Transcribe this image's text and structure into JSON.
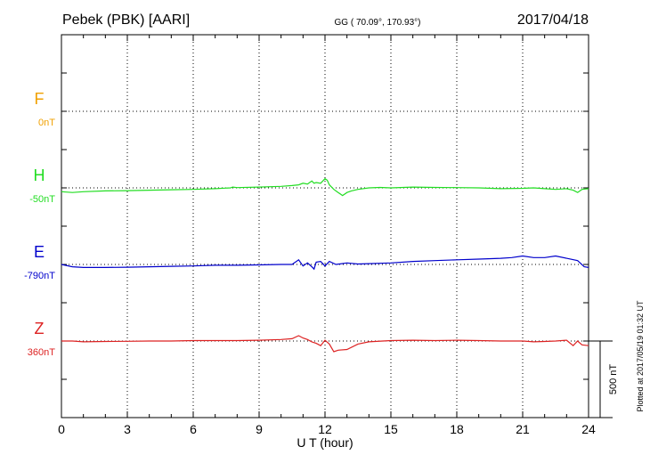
{
  "header": {
    "station": "Pebek (PBK)  [AARI]",
    "coords": "GG ( 70.09°, 170.93°)",
    "date": "2017/04/18"
  },
  "axis": {
    "xlabel": "U T (hour)",
    "ticks": [
      "0",
      "3",
      "6",
      "9",
      "12",
      "15",
      "18",
      "21",
      "24"
    ]
  },
  "scale_bar": {
    "label": "500 nT"
  },
  "plotted_text": "Plotted at 2017/05/19 01:32 UT",
  "chart_data": {
    "type": "line",
    "xlim": [
      0,
      24
    ],
    "grid": true,
    "series": [
      {
        "name": "F",
        "baseline": "0nT",
        "color": "#f0a000",
        "x": [],
        "y": []
      },
      {
        "name": "H",
        "baseline": "-50nT",
        "color": "#22dd22",
        "x": [
          0,
          0.5,
          1,
          2,
          3,
          4,
          5,
          6,
          7,
          7.7,
          7.8,
          8,
          9,
          10,
          10.5,
          10.8,
          11,
          11.2,
          11.4,
          11.5,
          11.6,
          11.8,
          12,
          12.1,
          12.2,
          12.4,
          12.6,
          12.8,
          13,
          13.2,
          13.5,
          14,
          14.5,
          15,
          16,
          17,
          18,
          19,
          20,
          21,
          21.5,
          22,
          22.5,
          23,
          23.3,
          23.5,
          23.7,
          24
        ],
        "y": [
          -25,
          -30,
          -25,
          -20,
          -18,
          -15,
          -12,
          -10,
          -5,
          0,
          5,
          2,
          5,
          10,
          15,
          20,
          30,
          25,
          45,
          30,
          35,
          30,
          60,
          50,
          20,
          -10,
          -30,
          -50,
          -30,
          -20,
          -10,
          0,
          3,
          0,
          5,
          3,
          2,
          0,
          -5,
          -3,
          0,
          -5,
          -10,
          -5,
          -15,
          -30,
          -10,
          -5
        ]
      },
      {
        "name": "E",
        "baseline": "-790nT",
        "color": "#0000cc",
        "x": [
          0,
          0.5,
          1,
          2,
          3,
          4,
          5,
          6,
          7,
          8,
          9,
          10,
          10.5,
          10.8,
          11,
          11.2,
          11.4,
          11.5,
          11.6,
          11.8,
          12,
          12.2,
          12.5,
          13,
          13.5,
          14,
          15,
          16,
          17,
          18,
          19,
          20,
          20.5,
          21,
          21.5,
          22,
          22.5,
          23,
          23.5,
          23.8,
          24
        ],
        "y": [
          0,
          -15,
          -20,
          -20,
          -18,
          -15,
          -12,
          -10,
          -5,
          -5,
          -3,
          0,
          0,
          30,
          -10,
          10,
          -15,
          -30,
          15,
          20,
          -10,
          20,
          0,
          10,
          3,
          5,
          10,
          20,
          25,
          30,
          35,
          40,
          45,
          55,
          45,
          45,
          55,
          40,
          25,
          -15,
          -20
        ]
      },
      {
        "name": "Z",
        "baseline": "360nT",
        "color": "#dd2222",
        "x": [
          0,
          0.5,
          1,
          2,
          3,
          4,
          5,
          6,
          7,
          8,
          9,
          10,
          10.5,
          10.8,
          11,
          11.2,
          11.4,
          11.6,
          11.8,
          12,
          12.2,
          12.4,
          12.6,
          13,
          13.5,
          14,
          15,
          16,
          17,
          18,
          19,
          20,
          21,
          21.5,
          22,
          22.5,
          23,
          23.3,
          23.5,
          23.7,
          24
        ],
        "y": [
          0,
          0,
          -5,
          -3,
          -2,
          0,
          0,
          3,
          3,
          3,
          5,
          10,
          15,
          35,
          20,
          10,
          -5,
          -15,
          -30,
          5,
          -20,
          -70,
          -60,
          -55,
          -20,
          -5,
          3,
          5,
          3,
          5,
          3,
          0,
          0,
          -5,
          -3,
          0,
          5,
          -30,
          0,
          -25,
          -30
        ]
      }
    ]
  }
}
